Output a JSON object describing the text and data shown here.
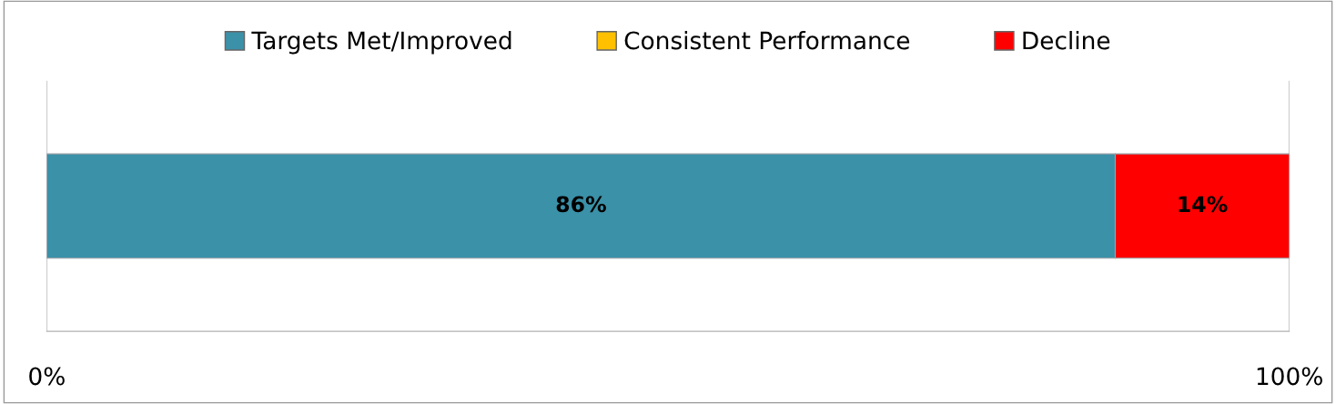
{
  "chart_data": {
    "type": "bar",
    "orientation": "horizontal",
    "stacked": true,
    "categories": [
      null
    ],
    "series": [
      {
        "name": "Targets Met/Improved",
        "color": "#3a91a8",
        "values": [
          86
        ],
        "value_labels": [
          "86%"
        ]
      },
      {
        "name": "Consistent Performance",
        "color": "#ffc000",
        "values": [
          0
        ],
        "value_labels": [
          null
        ]
      },
      {
        "name": "Decline",
        "color": "#ff0000",
        "values": [
          14
        ],
        "value_labels": [
          "14%"
        ]
      }
    ],
    "xlim": [
      0,
      100
    ],
    "xticks": [
      {
        "value": 0,
        "label": "0%"
      },
      {
        "value": 100,
        "label": "100%"
      }
    ],
    "grid": "x",
    "legend": "top"
  }
}
